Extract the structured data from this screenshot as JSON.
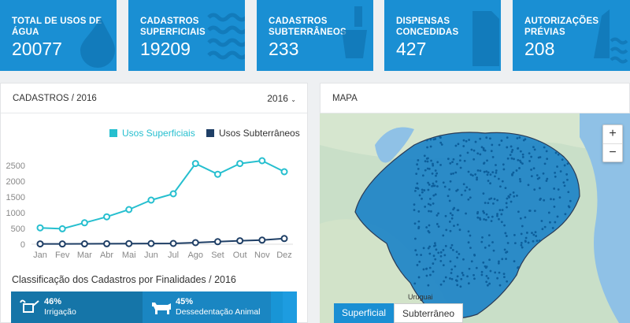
{
  "stats": [
    {
      "label": "TOTAL DE USOS DE ÁGUA",
      "value": "20077",
      "icon": "water-drop-icon"
    },
    {
      "label": "Cadastros Superficiais",
      "value": "19209",
      "icon": "waves-icon"
    },
    {
      "label": "Cadastros Subterrâneos",
      "value": "233",
      "icon": "water-bucket-icon"
    },
    {
      "label": "Dispensas Concedidas",
      "value": "427",
      "icon": "document-icon"
    },
    {
      "label": "Autorizações Prévias",
      "value": "208",
      "icon": "dam-icon"
    }
  ],
  "cadastros_panel": {
    "title": "CADASTROS / 2016",
    "year": "2016"
  },
  "map_panel": {
    "title": "MAPA"
  },
  "chart_data": {
    "type": "line",
    "categories": [
      "Jan",
      "Fev",
      "Mar",
      "Abr",
      "Mai",
      "Jun",
      "Jul",
      "Ago",
      "Set",
      "Out",
      "Nov",
      "Dez"
    ],
    "series": [
      {
        "name": "Usos Superficiais",
        "color": "#26bfcf",
        "values": [
          520,
          490,
          680,
          870,
          1100,
          1400,
          1600,
          2560,
          2220,
          2560,
          2650,
          2300
        ]
      },
      {
        "name": "Usos Subterrâneos",
        "color": "#1f3f66",
        "values": [
          10,
          8,
          12,
          15,
          20,
          22,
          25,
          50,
          80,
          110,
          130,
          180
        ]
      }
    ],
    "yticks": [
      "0",
      "500",
      "1000",
      "1500",
      "2000",
      "2500"
    ],
    "ylim": [
      0,
      2750
    ],
    "legend": "top-right",
    "grid": false
  },
  "classificacao": {
    "title": "Classificação dos Cadastros por Finalidades / 2016",
    "segments": [
      {
        "pct": "46%",
        "label": "Irrigação",
        "color": "#1575a8",
        "share": 0.46,
        "icon": "watering-can-icon"
      },
      {
        "pct": "45%",
        "label": "Dessedentação Animal",
        "color": "#1a86c2",
        "share": 0.45,
        "icon": "cow-icon"
      },
      {
        "pct": "",
        "label": "",
        "color": "#1895d6",
        "share": 0.04,
        "icon": ""
      }
    ]
  },
  "map": {
    "zoom_in": "+",
    "zoom_out": "−",
    "toggle_on": "Superficial",
    "toggle_off": "Subterrâneo",
    "label_uruguai": "Uruguai"
  }
}
